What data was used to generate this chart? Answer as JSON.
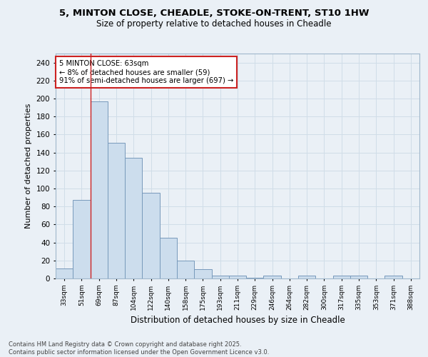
{
  "title1": "5, MINTON CLOSE, CHEADLE, STOKE-ON-TRENT, ST10 1HW",
  "title2": "Size of property relative to detached houses in Cheadle",
  "xlabel": "Distribution of detached houses by size in Cheadle",
  "ylabel": "Number of detached properties",
  "categories": [
    "33sqm",
    "51sqm",
    "69sqm",
    "87sqm",
    "104sqm",
    "122sqm",
    "140sqm",
    "158sqm",
    "175sqm",
    "193sqm",
    "211sqm",
    "229sqm",
    "246sqm",
    "264sqm",
    "282sqm",
    "300sqm",
    "317sqm",
    "335sqm",
    "353sqm",
    "371sqm",
    "388sqm"
  ],
  "values": [
    11,
    87,
    197,
    151,
    134,
    95,
    45,
    20,
    10,
    3,
    3,
    1,
    3,
    0,
    3,
    0,
    3,
    3,
    0,
    3,
    0
  ],
  "bar_color": "#ccdded",
  "bar_edge_color": "#7799bb",
  "grid_color": "#d0dde8",
  "bg_color": "#eaf0f6",
  "annotation_text": "5 MINTON CLOSE: 63sqm\n← 8% of detached houses are smaller (59)\n91% of semi-detached houses are larger (697) →",
  "annotation_box_color": "#ffffff",
  "annotation_box_edge": "#cc2222",
  "vline_color": "#cc2222",
  "footer": "Contains HM Land Registry data © Crown copyright and database right 2025.\nContains public sector information licensed under the Open Government Licence v3.0.",
  "ylim": [
    0,
    250
  ],
  "yticks": [
    0,
    20,
    40,
    60,
    80,
    100,
    120,
    140,
    160,
    180,
    200,
    220,
    240
  ]
}
